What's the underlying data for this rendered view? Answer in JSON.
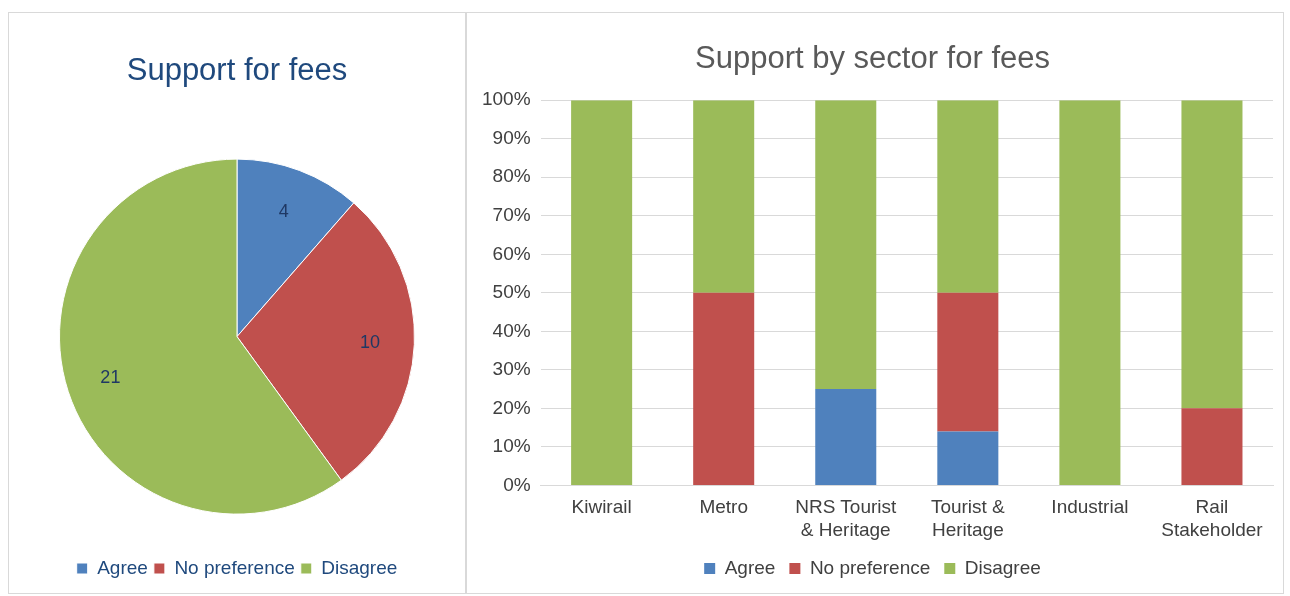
{
  "chart_data": [
    {
      "type": "pie",
      "title": "Support for fees",
      "categories": [
        "Agree",
        "No preference",
        "Disagree"
      ],
      "values": [
        4,
        10,
        21
      ],
      "colors": [
        "#4f81bd",
        "#c0504d",
        "#9bbb59"
      ],
      "data_labels": true,
      "legend": "bottom"
    },
    {
      "type": "bar",
      "title": "Support by sector for fees",
      "categories": [
        "Kiwirail",
        "Metro",
        "NRS Tourist & Heritage",
        "Tourist & Heritage",
        "Industrial",
        "Rail Stakeholder"
      ],
      "stacked": true,
      "series": [
        {
          "name": "Agree",
          "color": "#4f81bd",
          "values": [
            0,
            0,
            25,
            14,
            0,
            0
          ]
        },
        {
          "name": "No preference",
          "color": "#c0504d",
          "values": [
            0,
            50,
            0,
            36,
            0,
            20
          ]
        },
        {
          "name": "Disagree",
          "color": "#9bbb59",
          "values": [
            100,
            50,
            75,
            50,
            100,
            80
          ]
        }
      ],
      "ylim": [
        0,
        100
      ],
      "yticks": [
        {
          "value": 0,
          "label": "0%"
        },
        {
          "value": 10,
          "label": "10%"
        },
        {
          "value": 20,
          "label": "20%"
        },
        {
          "value": 30,
          "label": "30%"
        },
        {
          "value": 40,
          "label": "40%"
        },
        {
          "value": 50,
          "label": "50%"
        },
        {
          "value": 60,
          "label": "60%"
        },
        {
          "value": 70,
          "label": "70%"
        },
        {
          "value": 80,
          "label": "80%"
        },
        {
          "value": 90,
          "label": "90%"
        },
        {
          "value": 100,
          "label": "100%"
        }
      ],
      "grid": "y",
      "legend": "bottom"
    }
  ]
}
